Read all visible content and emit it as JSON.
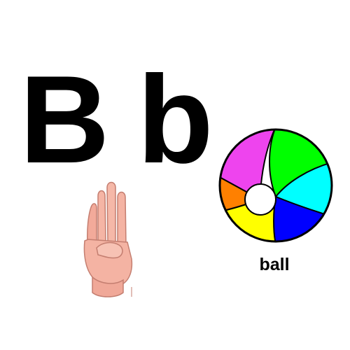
{
  "letters": {
    "uppercase": "B",
    "lowercase": "b"
  },
  "word": "ball",
  "icons": {
    "hand": "asl-letter-b-hand-icon",
    "ball": "beach-ball-icon"
  },
  "colors": {
    "text": "#000000",
    "skin": "#f4b3a3",
    "ball_segments": [
      "#ff00ff",
      "#00ff00",
      "#00ffff",
      "#0000ff",
      "#ffff00",
      "#ff8000"
    ]
  }
}
